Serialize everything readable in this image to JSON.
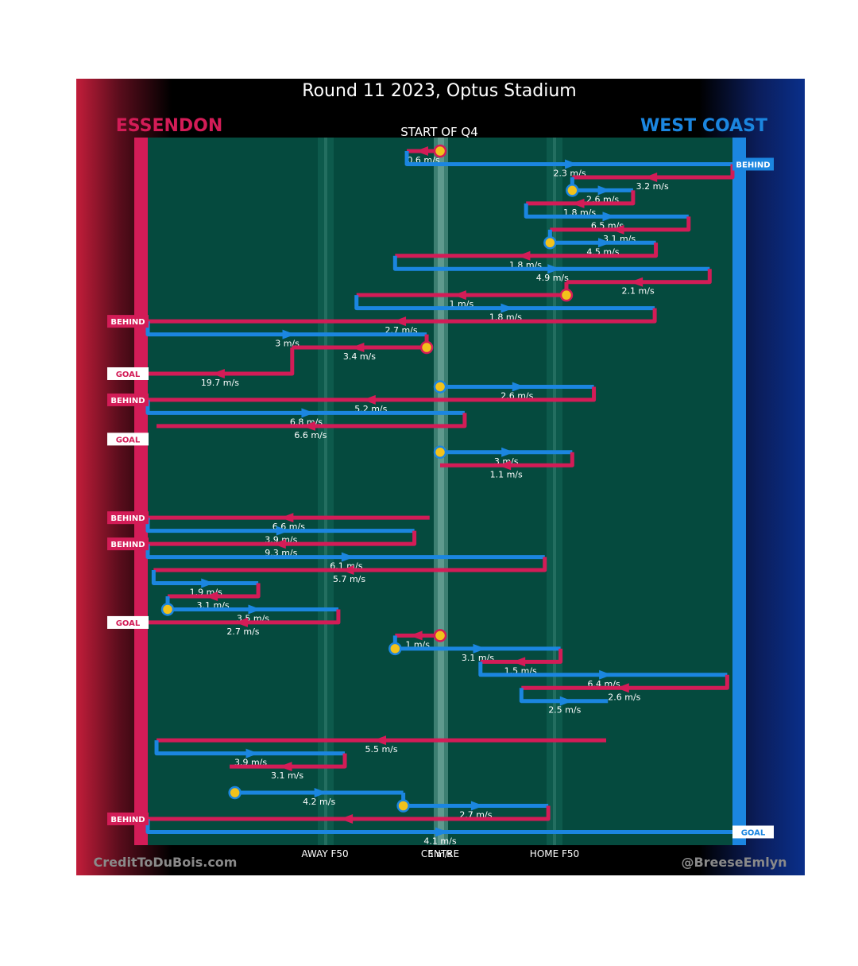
{
  "colors": {
    "essendon": "#d31c57",
    "west_coast": "#1b86e0",
    "field": "#054a3e",
    "goal_icon": "#f2c21b"
  },
  "chart_data": {
    "type": "flow",
    "title": "Round 11 2023, Optus Stadium",
    "subtitle": "START OF Q4",
    "left_team": "ESSENDON",
    "right_team": "WEST COAST",
    "axis_labels": [
      "AWAY F50",
      "CENTRE",
      "HOME F50"
    ],
    "credit_left": "CreditToDuBois.com",
    "credit_right": "@BreeseEmlyn",
    "x_units": "field position: 0 = Essendon end, 100 = West Coast end",
    "scores": [
      {
        "team": "west_coast",
        "label": "BEHIND",
        "row": 1
      },
      {
        "team": "essendon",
        "label": "BEHIND",
        "row": 13
      },
      {
        "team": "essendon",
        "label": "GOAL",
        "row": 17
      },
      {
        "team": "essendon",
        "label": "BEHIND",
        "row": 19
      },
      {
        "team": "essendon",
        "label": "GOAL",
        "row": 22
      },
      {
        "team": "essendon",
        "label": "BEHIND",
        "row": 28
      },
      {
        "team": "essendon",
        "label": "BEHIND",
        "row": 30
      },
      {
        "team": "essendon",
        "label": "GOAL",
        "row": 36
      },
      {
        "team": "essendon",
        "label": "BEHIND",
        "row": 51
      },
      {
        "team": "west_coast",
        "label": "GOAL",
        "row": 52
      }
    ],
    "chains": [
      {
        "team": "ess",
        "from": 50.0,
        "to": 44.3,
        "speed": "0.6 m/s",
        "row": 0,
        "start": "ball"
      },
      {
        "team": "wce",
        "from": 44.3,
        "to": 100,
        "speed": "2.3 m/s",
        "row": 1
      },
      {
        "team": "ess",
        "from": 100,
        "to": 72.6,
        "speed": "3.2 m/s",
        "row": 2
      },
      {
        "team": "wce",
        "from": 72.6,
        "to": 83.0,
        "speed": "2.6 m/s",
        "row": 3,
        "start": "ball"
      },
      {
        "team": "ess",
        "from": 83.0,
        "to": 64.7,
        "speed": "1.8 m/s",
        "row": 4
      },
      {
        "team": "wce",
        "from": 64.7,
        "to": 92.5,
        "speed": "6.5 m/s",
        "row": 5
      },
      {
        "team": "ess",
        "from": 92.5,
        "to": 68.8,
        "speed": "3.1 m/s",
        "row": 6
      },
      {
        "team": "wce",
        "from": 68.8,
        "to": 86.9,
        "speed": "4.5 m/s",
        "row": 7,
        "start": "ball"
      },
      {
        "team": "ess",
        "from": 86.9,
        "to": 42.3,
        "speed": "1.8 m/s",
        "row": 8
      },
      {
        "team": "wce",
        "from": 42.3,
        "to": 96.1,
        "speed": "4.9 m/s",
        "row": 9
      },
      {
        "team": "ess",
        "from": 96.1,
        "to": 71.6,
        "speed": "2.1 m/s",
        "row": 10
      },
      {
        "team": "ess",
        "from": 71.6,
        "to": 35.7,
        "speed": "1 m/s",
        "row": 11,
        "start": "ball"
      },
      {
        "team": "wce",
        "from": 35.7,
        "to": 86.7,
        "speed": "1.8 m/s",
        "row": 12
      },
      {
        "team": "ess",
        "from": 86.7,
        "to": 0,
        "speed": "2.7 m/s",
        "row": 13
      },
      {
        "team": "wce",
        "from": 0,
        "to": 47.7,
        "speed": "3 m/s",
        "row": 14
      },
      {
        "team": "ess",
        "from": 47.7,
        "to": 24.7,
        "speed": "3.4 m/s",
        "row": 15,
        "start": "ball"
      },
      {
        "team": "ess",
        "from": 24.7,
        "to": 0,
        "speed": "19.7 m/s",
        "row": 17
      },
      {
        "team": "wce",
        "from": 50.0,
        "to": 76.3,
        "speed": "2.6 m/s",
        "row": 18,
        "start": "ball"
      },
      {
        "team": "ess",
        "from": 76.3,
        "to": 0,
        "speed": "5.2 m/s",
        "row": 19
      },
      {
        "team": "wce",
        "from": 0,
        "to": 54.2,
        "speed": "6.8 m/s",
        "row": 20
      },
      {
        "team": "ess",
        "from": 54.2,
        "to": 1.5,
        "speed": "6.6 m/s",
        "row": 21
      },
      {
        "team": "wce",
        "from": 50.0,
        "to": 72.6,
        "speed": "3 m/s",
        "row": 23,
        "start": "ball"
      },
      {
        "team": "ess",
        "from": 72.6,
        "to": 50.0,
        "speed": "1.1 m/s",
        "row": 24
      },
      {
        "team": "ess",
        "from": 48.2,
        "to": 0,
        "speed": "6.6 m/s",
        "row": 28
      },
      {
        "team": "wce",
        "from": 0,
        "to": 45.6,
        "speed": "3.9 m/s",
        "row": 29
      },
      {
        "team": "ess",
        "from": 45.6,
        "to": 0,
        "speed": "9.3 m/s",
        "row": 30
      },
      {
        "team": "wce",
        "from": 0,
        "to": 67.9,
        "speed": "6.1 m/s",
        "row": 31
      },
      {
        "team": "ess",
        "from": 67.9,
        "to": 1.0,
        "speed": "5.7 m/s",
        "row": 32
      },
      {
        "team": "wce",
        "from": 1.0,
        "to": 18.9,
        "speed": "1.9 m/s",
        "row": 33
      },
      {
        "team": "ess",
        "from": 18.9,
        "to": 3.4,
        "speed": "3.1 m/s",
        "row": 34
      },
      {
        "team": "wce",
        "from": 3.4,
        "to": 32.6,
        "speed": "3.5 m/s",
        "row": 35,
        "start": "ball"
      },
      {
        "team": "ess",
        "from": 32.6,
        "to": 0,
        "speed": "2.7 m/s",
        "row": 36
      },
      {
        "team": "ess",
        "from": 50.0,
        "to": 42.3,
        "speed": "1 m/s",
        "row": 37,
        "start": "ball"
      },
      {
        "team": "wce",
        "from": 42.3,
        "to": 70.6,
        "speed": "3.1 m/s",
        "row": 38,
        "start": "ball"
      },
      {
        "team": "ess",
        "from": 70.6,
        "to": 56.9,
        "speed": "1.5 m/s",
        "row": 39
      },
      {
        "team": "wce",
        "from": 56.9,
        "to": 99.1,
        "speed": "6.4 m/s",
        "row": 40
      },
      {
        "team": "ess",
        "from": 99.1,
        "to": 63.9,
        "speed": "2.6 m/s",
        "row": 41
      },
      {
        "team": "wce",
        "from": 63.9,
        "to": 78.7,
        "speed": "2.5 m/s",
        "row": 42
      },
      {
        "team": "ess",
        "from": 78.4,
        "to": 1.5,
        "speed": "5.5 m/s",
        "row": 45
      },
      {
        "team": "wce",
        "from": 1.5,
        "to": 33.7,
        "speed": "3.9 m/s",
        "row": 46
      },
      {
        "team": "ess",
        "from": 33.7,
        "to": 14.0,
        "speed": "3.1 m/s",
        "row": 47
      },
      {
        "team": "wce",
        "from": 14.9,
        "to": 43.7,
        "speed": "4.2 m/s",
        "row": 49,
        "start": "ball"
      },
      {
        "team": "wce",
        "from": 43.7,
        "to": 68.5,
        "speed": "2.7 m/s",
        "row": 50,
        "start": "ball"
      },
      {
        "team": "ess",
        "from": 68.5,
        "to": 0,
        "speed": "",
        "row": 51
      },
      {
        "team": "wce",
        "from": 0,
        "to": 100,
        "speed": "4.1 m/s",
        "row": 52
      },
      {
        "team": "wce",
        "from": 50.0,
        "to": 50.0,
        "speed": "5 m/s",
        "row": 53
      }
    ]
  }
}
